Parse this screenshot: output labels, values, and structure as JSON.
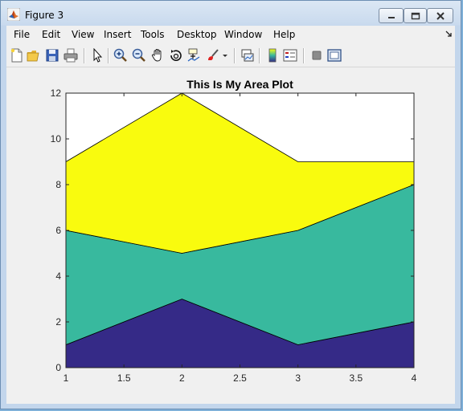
{
  "window": {
    "title": "Figure 3"
  },
  "menubar": {
    "items": [
      "File",
      "Edit",
      "View",
      "Insert",
      "Tools",
      "Desktop",
      "Window",
      "Help"
    ]
  },
  "toolbar": {
    "icons": [
      "new-figure-icon",
      "open-file-icon",
      "save-icon",
      "print-icon",
      "pointer-icon",
      "zoom-in-icon",
      "zoom-out-icon",
      "pan-icon",
      "rotate-3d-icon",
      "data-cursor-icon",
      "brush-icon",
      "brush-dropdown-icon",
      "link-plot-icon",
      "colorbar-icon",
      "legend-icon",
      "hide-plot-tools-icon",
      "show-plot-tools-icon"
    ]
  },
  "chart_data": {
    "type": "area",
    "stacked": true,
    "title": "This Is My Area Plot",
    "xlabel": "",
    "ylabel": "",
    "x": [
      1,
      2,
      3,
      4
    ],
    "series": [
      {
        "values": [
          1,
          3,
          1,
          2
        ],
        "color": "#352a87"
      },
      {
        "values": [
          5,
          2,
          5,
          6
        ],
        "color": "#38b99e"
      },
      {
        "values": [
          3,
          7,
          3,
          1
        ],
        "color": "#f9fb0e"
      }
    ],
    "xlim": [
      1,
      4
    ],
    "ylim": [
      0,
      12
    ],
    "xticks": [
      "1",
      "1.5",
      "2",
      "2.5",
      "3",
      "3.5",
      "4"
    ],
    "xtick_values": [
      1,
      1.5,
      2,
      2.5,
      3,
      3.5,
      4
    ],
    "yticks": [
      "0",
      "2",
      "4",
      "6",
      "8",
      "10",
      "12"
    ],
    "ytick_values": [
      0,
      2,
      4,
      6,
      8,
      10,
      12
    ],
    "grid": false,
    "legend": "none"
  }
}
